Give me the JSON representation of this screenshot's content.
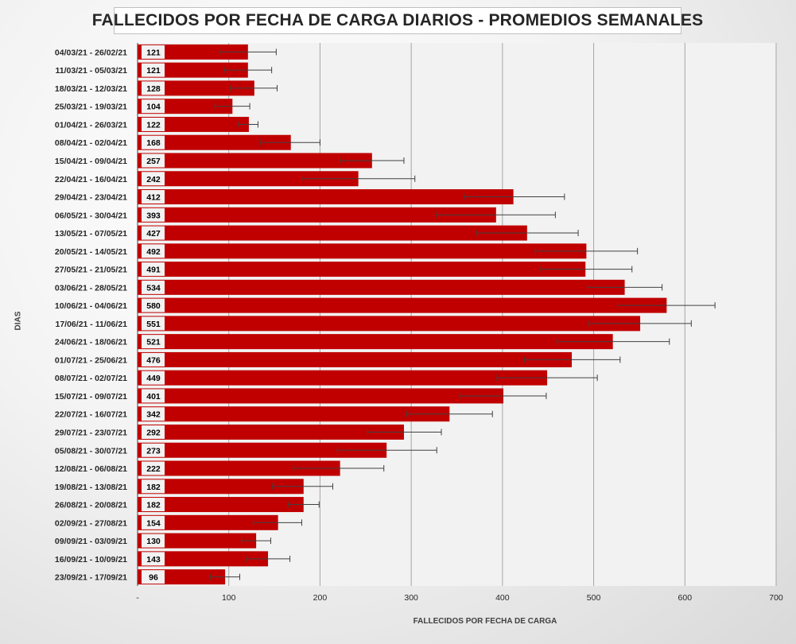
{
  "chart_data": {
    "type": "bar",
    "orientation": "horizontal",
    "title": "FALLECIDOS POR FECHA DE CARGA DIARIOS - PROMEDIOS SEMANALES",
    "xlabel": "FALLECIDOS POR FECHA DE CARGA",
    "ylabel": "DIAS",
    "xlim": [
      0,
      700
    ],
    "xticks": [
      "-",
      "100",
      "200",
      "300",
      "400",
      "500",
      "600",
      "700"
    ],
    "grid": true,
    "bar_color": "#c00000",
    "categories": [
      "04/03/21 - 26/02/21",
      "11/03/21 - 05/03/21",
      "18/03/21 - 12/03/21",
      "25/03/21 - 19/03/21",
      "01/04/21 - 26/03/21",
      "08/04/21 - 02/04/21",
      "15/04/21 - 09/04/21",
      "22/04/21 - 16/04/21",
      "29/04/21 - 23/04/21",
      "06/05/21 - 30/04/21",
      "13/05/21 - 07/05/21",
      "20/05/21 - 14/05/21",
      "27/05/21 - 21/05/21",
      "03/06/21 - 28/05/21",
      "10/06/21 - 04/06/21",
      "17/06/21 - 11/06/21",
      "24/06/21 - 18/06/21",
      "01/07/21 - 25/06/21",
      "08/07/21 - 02/07/21",
      "15/07/21 - 09/07/21",
      "22/07/21 - 16/07/21",
      "29/07/21 - 23/07/21",
      "05/08/21 - 30/07/21",
      "12/08/21 - 06/08/21",
      "19/08/21 - 13/08/21",
      "26/08/21 - 20/08/21",
      "02/09/21 - 27/08/21",
      "09/09/21 - 03/09/21",
      "16/09/21 - 10/09/21",
      "23/09/21 - 17/09/21"
    ],
    "values": [
      121,
      121,
      128,
      104,
      122,
      168,
      257,
      242,
      412,
      393,
      427,
      492,
      491,
      534,
      580,
      551,
      521,
      476,
      449,
      401,
      342,
      292,
      273,
      222,
      182,
      182,
      154,
      130,
      143,
      96
    ],
    "error_low": [
      90,
      95,
      102,
      85,
      110,
      135,
      222,
      180,
      358,
      328,
      372,
      436,
      441,
      493,
      526,
      495,
      460,
      424,
      394,
      353,
      295,
      252,
      219,
      171,
      148,
      165,
      127,
      114,
      120,
      80
    ],
    "error_high": [
      152,
      147,
      153,
      123,
      132,
      200,
      292,
      304,
      468,
      458,
      483,
      548,
      542,
      575,
      633,
      607,
      583,
      529,
      504,
      448,
      389,
      333,
      328,
      270,
      214,
      199,
      180,
      146,
      167,
      112
    ]
  }
}
